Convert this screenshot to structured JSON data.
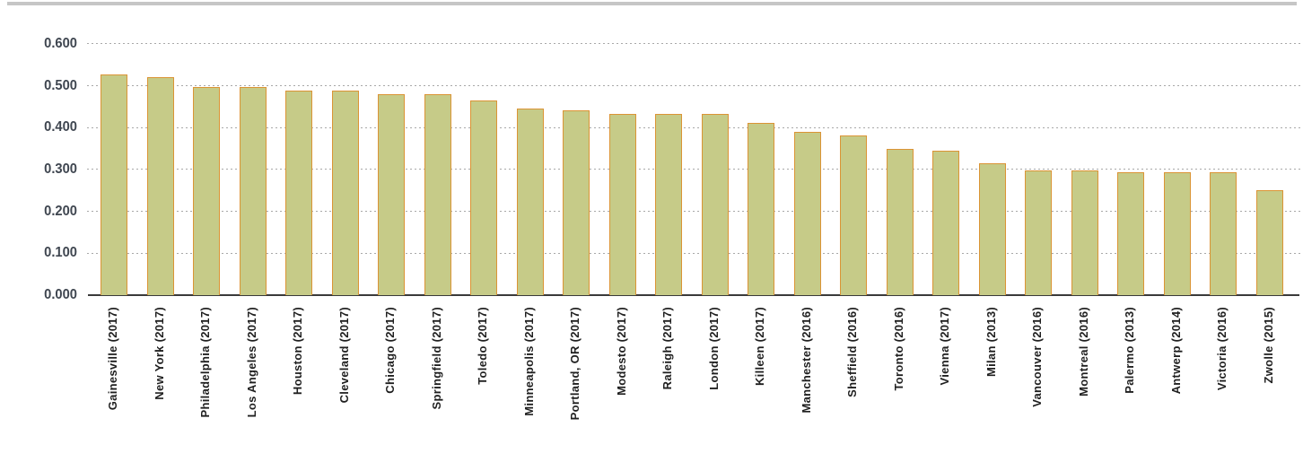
{
  "page": {
    "background": "#ffffff",
    "top_rule_color": "#c6c6c6"
  },
  "chart_data": {
    "type": "bar",
    "title": "",
    "xlabel": "",
    "ylabel": "",
    "ylim": [
      0,
      0.6
    ],
    "grid": "horizontal-dotted",
    "legend": "none",
    "ytick_labels": [
      "0.000",
      "0.100",
      "0.200",
      "0.300",
      "0.400",
      "0.500",
      "0.600"
    ],
    "ytick_values": [
      0,
      0.1,
      0.2,
      0.3,
      0.4,
      0.5,
      0.6
    ],
    "categories": [
      "Gainesville (2017)",
      "New York (2017)",
      "Philadelphia (2017)",
      "Los Angeles (2017)",
      "Houston (2017)",
      "Cleveland (2017)",
      "Chicago (2017)",
      "Springfield (2017)",
      "Toledo (2017)",
      "Minneapolis (2017)",
      "Portland, OR (2017)",
      "Modesto (2017)",
      "Raleigh (2017)",
      "London (2017)",
      "Killeen (2017)",
      "Manchester (2016)",
      "Sheffield (2016)",
      "Toronto (2016)",
      "Vienna (2017)",
      "Milan (2013)",
      "Vancouver (2016)",
      "Montreal (2016)",
      "Palermo (2013)",
      "Antwerp (2014)",
      "Victoria (2016)",
      "Zwolle (2015)"
    ],
    "values": [
      0.528,
      0.52,
      0.497,
      0.497,
      0.489,
      0.488,
      0.48,
      0.48,
      0.466,
      0.445,
      0.441,
      0.433,
      0.433,
      0.432,
      0.412,
      0.391,
      0.382,
      0.349,
      0.344,
      0.314,
      0.297,
      0.298,
      0.294,
      0.294,
      0.294,
      0.251
    ],
    "colors": {
      "bar_fill": "#c6cb88",
      "bar_border": "#db9435",
      "gridline": "#a8a8a8",
      "axis_line": "#3a3a3a",
      "ytick_label": "#3f4650",
      "xtick_label": "#1f1f1f"
    }
  }
}
